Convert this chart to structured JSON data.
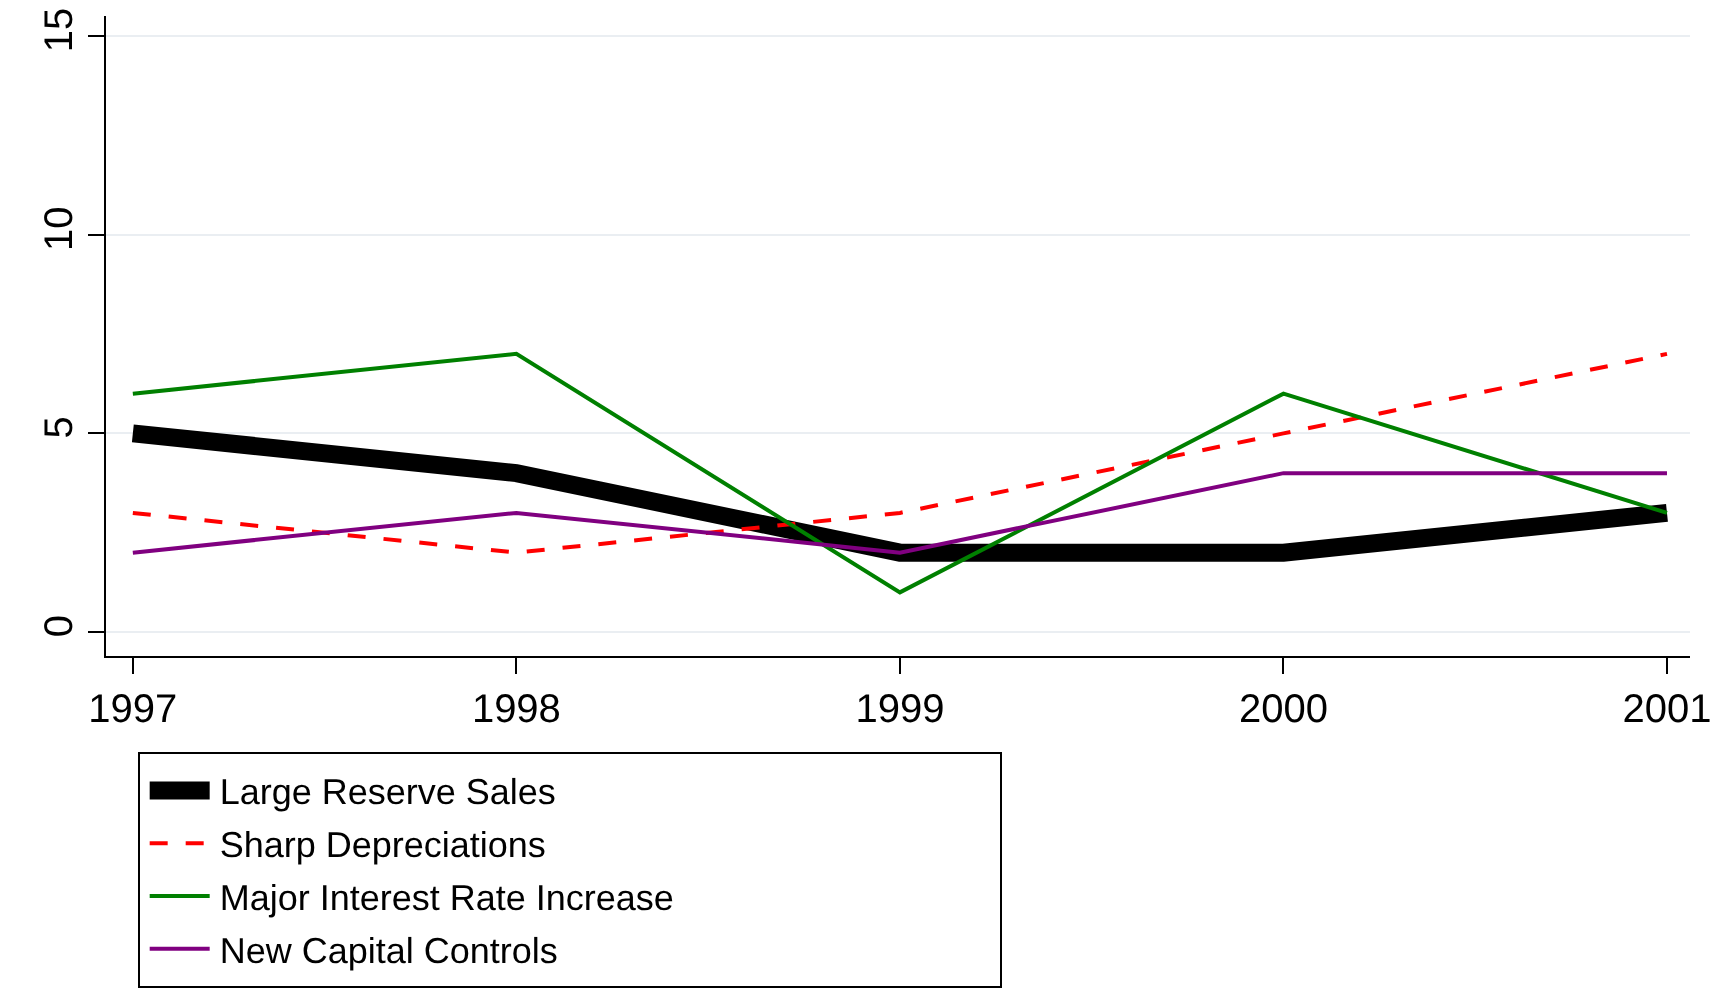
{
  "chart_data": {
    "type": "line",
    "x": [
      1997,
      1998,
      1999,
      2000,
      2001
    ],
    "series": [
      {
        "name": "Large Reserve Sales",
        "color": "#000000",
        "values": [
          5,
          4,
          2,
          2,
          3
        ]
      },
      {
        "name": "Sharp Depreciations",
        "color": "#ff0000",
        "values": [
          3,
          2,
          3,
          5,
          7
        ],
        "line_style": "dashed"
      },
      {
        "name": "Major Interest Rate Increase",
        "color": "#008000",
        "values": [
          6,
          7,
          1,
          6,
          3
        ]
      },
      {
        "name": "New Capital Controls",
        "color": "#800080",
        "values": [
          2,
          3,
          2,
          4,
          4
        ]
      }
    ],
    "xlim": [
      1996.93,
      2001.06
    ],
    "xticks": [
      1997,
      1998,
      1999,
      2000,
      2001
    ],
    "ylim": [
      -0.6,
      15.5
    ],
    "yticks": [
      0,
      5,
      10,
      15
    ],
    "grid": "y",
    "legend": "bottom",
    "marker": "none",
    "line_style": "solid"
  }
}
